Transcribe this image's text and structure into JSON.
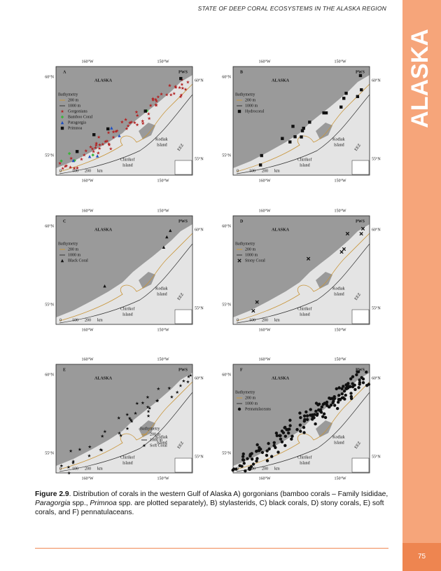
{
  "header": {
    "running_title": "STATE OF DEEP CORAL ECOSYSTEMS IN THE ALASKA REGION"
  },
  "sidebar": {
    "label": "ALASKA"
  },
  "page_number": "75",
  "map_labels": {
    "lon_west": "160°W",
    "lon_east": "150°W",
    "lat_north": "60°N",
    "lat_south": "55°N",
    "region": "ALASKA",
    "pws": "PWS",
    "kodiak": [
      "Kodiak",
      "Island"
    ],
    "chirikof": [
      "Chirikof",
      "Island"
    ],
    "eez": "EEZ",
    "bathymetry": "Bathymetry",
    "depth_200": "200 m",
    "depth_1000": "1000 m",
    "scale": [
      "0",
      "100",
      "200",
      "km"
    ]
  },
  "panels": [
    {
      "letter": "A",
      "markers": [
        {
          "label": "Gorgonians",
          "symbol": "star",
          "color": "#b22222"
        },
        {
          "label": "Bamboo Coral",
          "symbol": "diamond",
          "color": "#3cb43c"
        },
        {
          "label": "Paragorgia",
          "symbol": "triangle",
          "color": "#2050c0"
        },
        {
          "label": "Primnoa",
          "symbol": "square",
          "color": "#111111"
        }
      ]
    },
    {
      "letter": "B",
      "markers": [
        {
          "label": "Hydrocoral",
          "symbol": "square",
          "color": "#111111"
        }
      ]
    },
    {
      "letter": "C",
      "markers": [
        {
          "label": "Black Coral",
          "symbol": "triangle",
          "color": "#111111"
        }
      ]
    },
    {
      "letter": "D",
      "markers": [
        {
          "label": "Stony Coral",
          "symbol": "cross",
          "color": "#111111"
        }
      ]
    },
    {
      "letter": "E",
      "markers": [
        {
          "label": "Soft Coral",
          "symbol": "star",
          "color": "#111111"
        }
      ]
    },
    {
      "letter": "F",
      "markers": [
        {
          "label": "Pennatulaceans",
          "symbol": "circle",
          "color": "#111111"
        }
      ]
    }
  ],
  "caption": {
    "parts": [
      "Figure 2.9",
      ".  Distribution of corals in the western Gulf of Alaska A) gorgonians (bamboo corals – Family Isididae, ",
      "Paragorgia",
      " spp., ",
      "Primnoa",
      " spp. are plotted separately), B) stylasterids, C) black corals, D) stony corals, E) soft corals, and F) pennatulaceans."
    ]
  }
}
